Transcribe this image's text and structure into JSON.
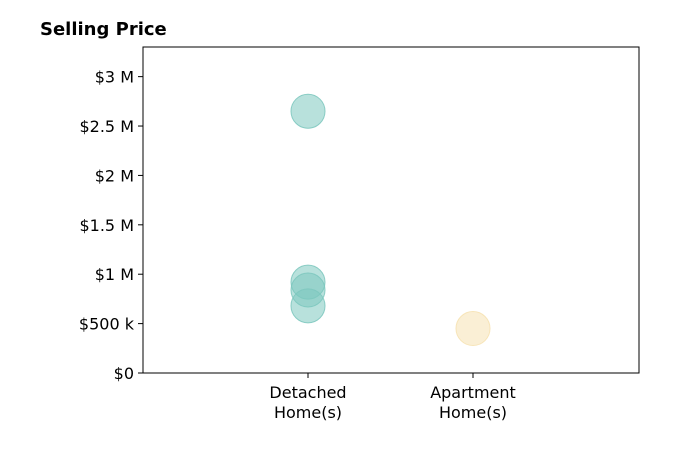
{
  "chart_data": {
    "type": "scatter",
    "title": "Selling Price",
    "xlabel": "",
    "ylabel": "",
    "categories": [
      [
        "Detached",
        "Home(s)"
      ],
      [
        "Apartment",
        "Home(s)"
      ]
    ],
    "ylim": [
      0,
      3300000
    ],
    "yticks": [
      {
        "value": 0,
        "label": "$0"
      },
      {
        "value": 500000,
        "label": "$500 k"
      },
      {
        "value": 1000000,
        "label": "$1 M"
      },
      {
        "value": 1500000,
        "label": "$1.5 M"
      },
      {
        "value": 2000000,
        "label": "$2 M"
      },
      {
        "value": 2500000,
        "label": "$2.5 M"
      },
      {
        "value": 3000000,
        "label": "$3 M"
      }
    ],
    "grid": false,
    "legend": "none",
    "series": [
      {
        "category_index": 0,
        "color": "#7ec8bf",
        "values": [
          2650000,
          920000,
          840000,
          680000
        ]
      },
      {
        "category_index": 1,
        "color": "#f6e2b3",
        "values": [
          450000
        ]
      }
    ]
  }
}
